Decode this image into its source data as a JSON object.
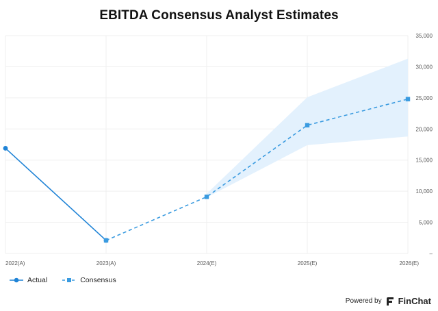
{
  "chart_data": {
    "type": "line",
    "title": "EBITDA Consensus Analyst Estimates",
    "categories": [
      "2022(A)",
      "2023(A)",
      "2024(E)",
      "2025(E)",
      "2026(E)"
    ],
    "ylim": [
      0,
      35000
    ],
    "yticks": [
      "–",
      "5,000",
      "10,000",
      "15,000",
      "20,000",
      "25,000",
      "30,000",
      "35,000"
    ],
    "grid": true,
    "legend_position": "bottom-left",
    "series": [
      {
        "name": "Actual",
        "style": "solid",
        "marker": "circle",
        "color": "#1f83d6",
        "values": [
          16900,
          2100,
          null,
          null,
          null
        ]
      },
      {
        "name": "Consensus",
        "style": "dashed",
        "marker": "square",
        "color": "#3a9be0",
        "values": [
          null,
          2100,
          9100,
          20600,
          24800
        ]
      }
    ],
    "range_band": {
      "color": "#e3f1fd",
      "low": [
        null,
        null,
        9000,
        17400,
        18800
      ],
      "high": [
        null,
        null,
        9600,
        25100,
        31300
      ]
    }
  },
  "footer": {
    "powered_by": "Powered by",
    "brand": "FinChat"
  }
}
